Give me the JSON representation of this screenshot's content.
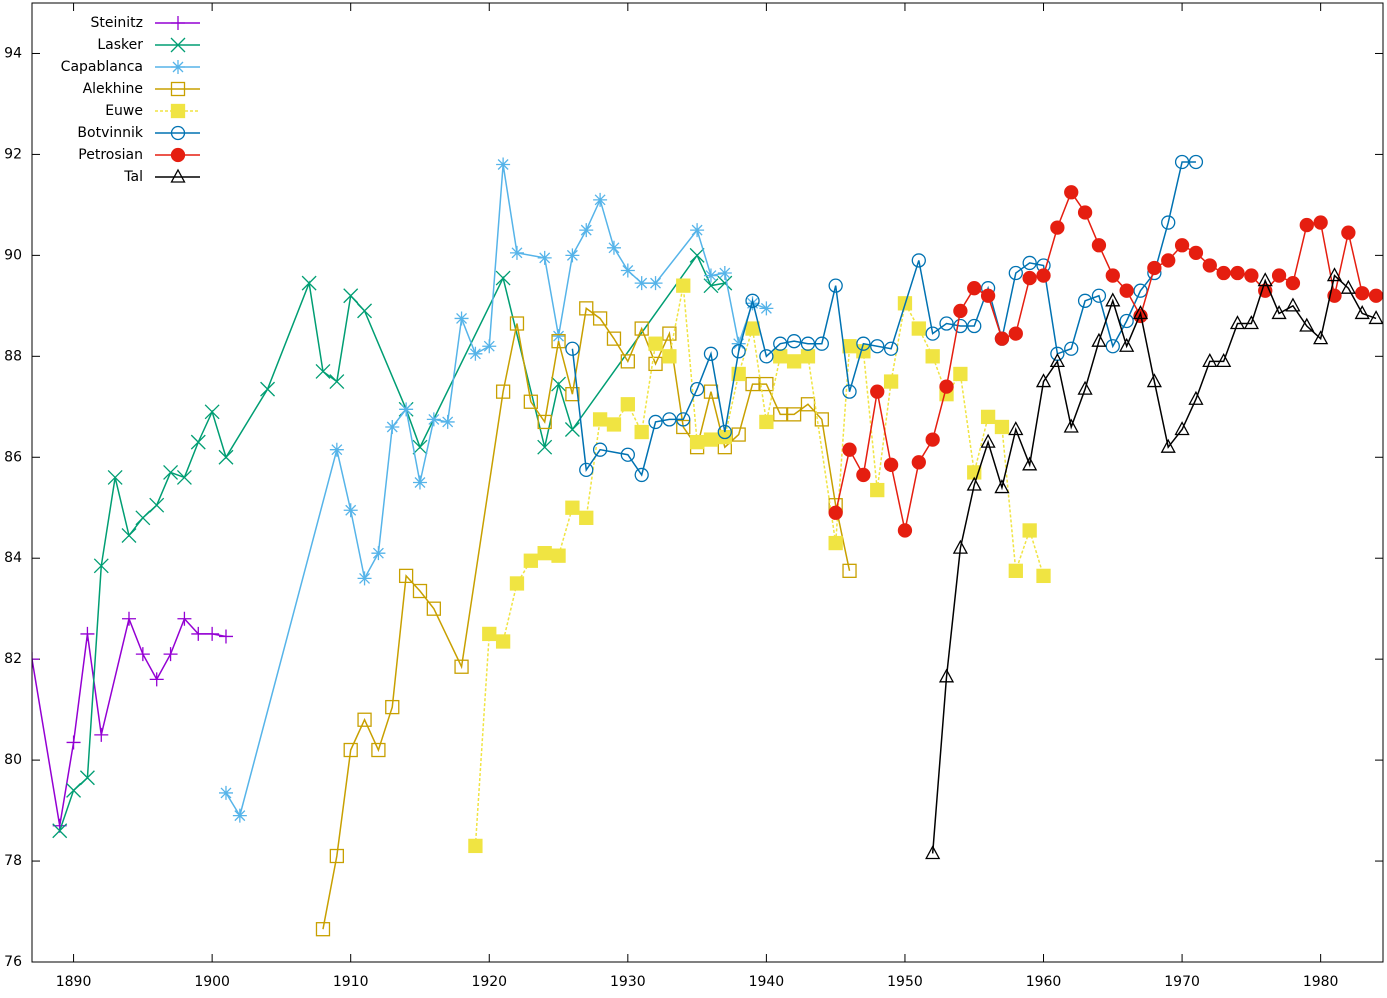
{
  "chart_data": {
    "type": "line",
    "xlim": [
      1887,
      1984.5
    ],
    "ylim": [
      76,
      95
    ],
    "xticks": [
      1890,
      1900,
      1910,
      1920,
      1930,
      1940,
      1950,
      1960,
      1970,
      1980
    ],
    "yticks": [
      76,
      78,
      80,
      82,
      84,
      86,
      88,
      90,
      92,
      94
    ],
    "legend": "top-left",
    "series": [
      {
        "name": "Steinitz",
        "color": "#9400d3",
        "marker": "plus",
        "x": [
          1887,
          1889,
          1890,
          1891,
          1892,
          1894,
          1895,
          1896,
          1897,
          1898,
          1899,
          1900,
          1901
        ],
        "values": [
          82.0,
          78.7,
          80.35,
          82.5,
          80.5,
          82.8,
          82.1,
          81.6,
          82.1,
          82.8,
          82.5,
          82.5,
          82.45
        ]
      },
      {
        "name": "Lasker",
        "color": "#009e73",
        "marker": "cross",
        "x": [
          1889,
          1890,
          1891,
          1892,
          1893,
          1894,
          1895,
          1896,
          1897,
          1898,
          1899,
          1900,
          1901,
          1904,
          1907,
          1908,
          1909,
          1910,
          1911,
          1914,
          1915,
          1921,
          1924,
          1925,
          1926,
          1935,
          1936,
          1937
        ],
        "values": [
          78.6,
          79.4,
          79.65,
          83.85,
          85.6,
          84.45,
          84.8,
          85.05,
          85.7,
          85.6,
          86.3,
          86.9,
          86.0,
          87.35,
          89.45,
          87.7,
          87.5,
          89.2,
          88.9,
          86.95,
          86.2,
          89.55,
          86.2,
          87.45,
          86.55,
          90.0,
          89.4,
          89.45
        ]
      },
      {
        "name": "Capablanca",
        "color": "#56b4e9",
        "marker": "star",
        "x": [
          1901,
          1902,
          1909,
          1910,
          1911,
          1912,
          1913,
          1914,
          1915,
          1916,
          1917,
          1918,
          1919,
          1920,
          1921,
          1922,
          1924,
          1925,
          1926,
          1927,
          1928,
          1929,
          1930,
          1931,
          1932,
          1935,
          1936,
          1937,
          1938,
          1939,
          1940
        ],
        "values": [
          79.35,
          78.9,
          86.15,
          84.95,
          83.6,
          84.1,
          86.6,
          86.95,
          85.5,
          86.75,
          86.7,
          88.75,
          88.05,
          88.2,
          91.8,
          90.05,
          89.95,
          88.4,
          90.0,
          90.5,
          91.1,
          90.15,
          89.7,
          89.45,
          89.45,
          90.5,
          89.6,
          89.65,
          88.25,
          89.05,
          88.95
        ]
      },
      {
        "name": "Alekhine",
        "color": "#c8a000",
        "marker": "square",
        "x": [
          1908,
          1909,
          1910,
          1911,
          1912,
          1913,
          1914,
          1915,
          1916,
          1918,
          1921,
          1922,
          1923,
          1924,
          1925,
          1926,
          1927,
          1928,
          1929,
          1930,
          1931,
          1932,
          1933,
          1934,
          1935,
          1936,
          1937,
          1938,
          1939,
          1940,
          1941,
          1942,
          1943,
          1944,
          1945,
          1946
        ],
        "values": [
          76.65,
          78.1,
          80.2,
          80.8,
          80.2,
          81.05,
          83.65,
          83.35,
          83.0,
          81.85,
          87.3,
          88.65,
          87.1,
          86.7,
          88.3,
          87.25,
          88.95,
          88.75,
          88.35,
          87.9,
          88.55,
          87.85,
          88.45,
          86.6,
          86.2,
          87.3,
          86.2,
          86.45,
          87.45,
          87.45,
          86.85,
          86.85,
          87.05,
          86.75,
          85.05,
          83.75
        ]
      },
      {
        "name": "Euwe",
        "color": "#f0e442",
        "marker": "square-filled",
        "dashed": true,
        "x": [
          1919,
          1920,
          1921,
          1922,
          1923,
          1924,
          1925,
          1926,
          1927,
          1928,
          1929,
          1930,
          1931,
          1932,
          1933,
          1934,
          1935,
          1936,
          1937,
          1938,
          1939,
          1940,
          1941,
          1942,
          1943,
          1945,
          1946,
          1947,
          1948,
          1949,
          1950,
          1951,
          1952,
          1953,
          1954,
          1955,
          1956,
          1957,
          1958,
          1959,
          1960
        ],
        "values": [
          78.3,
          82.5,
          82.35,
          83.5,
          83.95,
          84.1,
          84.05,
          85.0,
          84.8,
          86.75,
          86.65,
          87.05,
          86.5,
          88.25,
          88.0,
          89.4,
          86.3,
          86.35,
          86.4,
          87.65,
          88.55,
          86.7,
          88.0,
          87.9,
          88.0,
          84.3,
          88.2,
          88.1,
          85.35,
          87.5,
          89.05,
          88.55,
          88.0,
          87.25,
          87.65,
          85.7,
          86.8,
          86.6,
          83.75,
          84.55,
          83.65
        ]
      },
      {
        "name": "Botvinnik",
        "color": "#0072b2",
        "marker": "circle",
        "x": [
          1926,
          1927,
          1928,
          1930,
          1931,
          1932,
          1933,
          1934,
          1935,
          1936,
          1937,
          1938,
          1939,
          1940,
          1941,
          1942,
          1943,
          1944,
          1945,
          1946,
          1947,
          1948,
          1949,
          1951,
          1952,
          1953,
          1954,
          1955,
          1956,
          1957,
          1958,
          1959,
          1960,
          1961,
          1962,
          1963,
          1964,
          1965,
          1966,
          1967,
          1968,
          1969,
          1970,
          1971
        ],
        "values": [
          88.15,
          85.75,
          86.15,
          86.05,
          85.65,
          86.7,
          86.75,
          86.75,
          87.35,
          88.05,
          86.5,
          88.1,
          89.1,
          88.0,
          88.25,
          88.3,
          88.25,
          88.25,
          89.4,
          87.3,
          88.25,
          88.2,
          88.15,
          89.9,
          88.45,
          88.65,
          88.6,
          88.6,
          89.35,
          88.35,
          89.65,
          89.85,
          89.8,
          88.05,
          88.15,
          89.1,
          89.2,
          88.2,
          88.7,
          89.3,
          89.65,
          90.65,
          91.85,
          91.85
        ]
      },
      {
        "name": "Petrosian",
        "color": "#e51e10",
        "marker": "circle-filled",
        "x": [
          1945,
          1946,
          1947,
          1948,
          1949,
          1950,
          1951,
          1952,
          1953,
          1954,
          1955,
          1956,
          1957,
          1958,
          1959,
          1960,
          1961,
          1962,
          1963,
          1964,
          1965,
          1966,
          1967,
          1968,
          1969,
          1970,
          1971,
          1972,
          1973,
          1974,
          1975,
          1976,
          1977,
          1978,
          1979,
          1980,
          1981,
          1982,
          1983,
          1984
        ],
        "values": [
          84.9,
          86.15,
          85.65,
          87.3,
          85.85,
          84.55,
          85.9,
          86.35,
          87.4,
          88.9,
          89.35,
          89.2,
          88.35,
          88.45,
          89.55,
          89.6,
          90.55,
          91.25,
          90.85,
          90.2,
          89.6,
          89.3,
          88.8,
          89.75,
          89.9,
          90.2,
          90.05,
          89.8,
          89.65,
          89.65,
          89.6,
          89.3,
          89.6,
          89.45,
          90.6,
          90.65,
          89.2,
          90.45,
          89.25,
          89.2
        ]
      },
      {
        "name": "Tal",
        "color": "#000000",
        "marker": "triangle",
        "x": [
          1952,
          1953,
          1954,
          1955,
          1956,
          1957,
          1958,
          1959,
          1960,
          1961,
          1962,
          1963,
          1964,
          1965,
          1966,
          1967,
          1968,
          1969,
          1970,
          1971,
          1972,
          1973,
          1974,
          1975,
          1976,
          1977,
          1978,
          1979,
          1980,
          1981,
          1982,
          1983,
          1984
        ],
        "values": [
          78.15,
          81.65,
          84.2,
          85.45,
          86.3,
          85.4,
          86.55,
          85.85,
          87.5,
          87.9,
          86.6,
          87.35,
          88.3,
          89.1,
          88.2,
          88.85,
          87.5,
          86.2,
          86.55,
          87.15,
          87.9,
          87.9,
          88.65,
          88.65,
          89.5,
          88.85,
          89.0,
          88.6,
          88.35,
          89.6,
          89.35,
          88.85,
          88.75
        ]
      }
    ]
  }
}
